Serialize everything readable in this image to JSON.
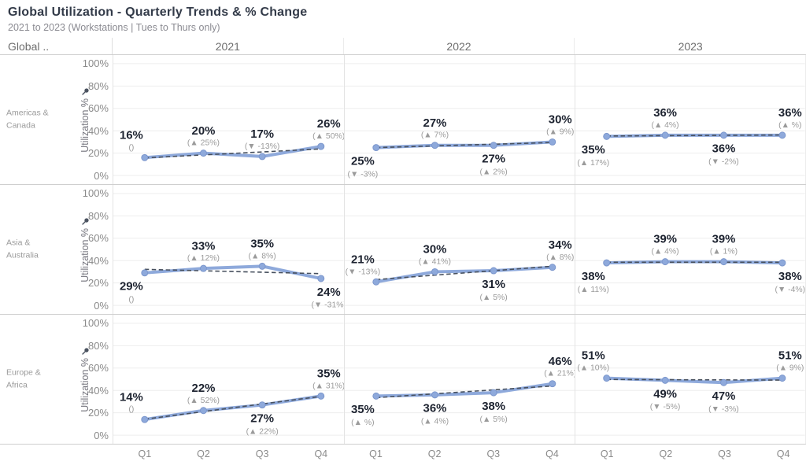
{
  "header": {
    "title": "Global Utilization - Quarterly Trends & % Change",
    "subtitle": "2021 to 2023 (Workstations | Tues to Thurs only)"
  },
  "colors": {
    "line": "#8ea9db",
    "marker": "#8ea9db",
    "marker_edge": "#7b96cc",
    "trend": "#47505e",
    "value_label": "#1d2330",
    "change_label": "#9b9b9b",
    "grid": "#ededed",
    "title": "#333b49"
  },
  "chart_data": {
    "type": "line",
    "title": "Global Utilization - Quarterly Trends & % Change",
    "subtitle": "2021 to 2023 (Workstations | Tues to Thurs only)",
    "corner_label": "Global ..",
    "columns": [
      "2021",
      "2022",
      "2023"
    ],
    "categories": [
      "Q1",
      "Q2",
      "Q3",
      "Q4"
    ],
    "ylabel": "Utilization %",
    "yticks": [
      "100%",
      "80%",
      "60%",
      "40%",
      "20%",
      "0%"
    ],
    "ylim": [
      0,
      100
    ],
    "grid": true,
    "legend": "none",
    "trendline": "linear dashed per panel",
    "rows": [
      {
        "label": "Americas & Canada",
        "panels": [
          {
            "year": "2021",
            "values": [
              16,
              20,
              17,
              26
            ],
            "value_labels": [
              "16%",
              "20%",
              "17%",
              "26%"
            ],
            "change_labels": [
              "()",
              "(▲ 25%)",
              "(▼ -13%)",
              "(▲ 50%)"
            ],
            "label_side": [
              "above",
              "above",
              "above",
              "above"
            ]
          },
          {
            "year": "2022",
            "values": [
              25,
              27,
              27,
              30
            ],
            "value_labels": [
              "25%",
              "27%",
              "27%",
              "30%"
            ],
            "change_labels": [
              "(▼ -3%)",
              "(▲ 7%)",
              "(▲ 2%)",
              "(▲ 9%)"
            ],
            "label_side": [
              "below",
              "above",
              "below",
              "above"
            ]
          },
          {
            "year": "2023",
            "values": [
              35,
              36,
              36,
              36
            ],
            "value_labels": [
              "35%",
              "36%",
              "36%",
              "36%"
            ],
            "change_labels": [
              "(▲ 17%)",
              "(▲ 4%)",
              "(▼ -2%)",
              "(▲ %)"
            ],
            "label_side": [
              "below",
              "above",
              "below",
              "above"
            ]
          }
        ]
      },
      {
        "label": "Asia & Australia",
        "panels": [
          {
            "year": "2021",
            "values": [
              29,
              33,
              35,
              24
            ],
            "value_labels": [
              "29%",
              "33%",
              "35%",
              "24%"
            ],
            "change_labels": [
              "()",
              "(▲ 12%)",
              "(▲ 8%)",
              "(▼ -31%)"
            ],
            "label_side": [
              "below",
              "above",
              "above",
              "below"
            ]
          },
          {
            "year": "2022",
            "values": [
              21,
              30,
              31,
              34
            ],
            "value_labels": [
              "21%",
              "30%",
              "31%",
              "34%"
            ],
            "change_labels": [
              "(▼ -13%)",
              "(▲ 41%)",
              "(▲ 5%)",
              "(▲ 8%)"
            ],
            "label_side": [
              "above",
              "above",
              "below",
              "above"
            ]
          },
          {
            "year": "2023",
            "values": [
              38,
              39,
              39,
              38
            ],
            "value_labels": [
              "38%",
              "39%",
              "39%",
              "38%"
            ],
            "change_labels": [
              "(▲ 11%)",
              "(▲ 4%)",
              "(▲ 1%)",
              "(▼ -4%)"
            ],
            "label_side": [
              "below",
              "above",
              "above",
              "below"
            ]
          }
        ]
      },
      {
        "label": "Europe & Africa",
        "panels": [
          {
            "year": "2021",
            "values": [
              14,
              22,
              27,
              35
            ],
            "value_labels": [
              "14%",
              "22%",
              "27%",
              "35%"
            ],
            "change_labels": [
              "()",
              "(▲ 52%)",
              "(▲ 22%)",
              "(▲ 31%)"
            ],
            "label_side": [
              "above",
              "above",
              "below",
              "above"
            ]
          },
          {
            "year": "2022",
            "values": [
              35,
              36,
              38,
              46
            ],
            "value_labels": [
              "35%",
              "36%",
              "38%",
              "46%"
            ],
            "change_labels": [
              "(▲ %)",
              "(▲ 4%)",
              "(▲ 5%)",
              "(▲ 21%)"
            ],
            "label_side": [
              "below",
              "below",
              "below",
              "above"
            ]
          },
          {
            "year": "2023",
            "values": [
              51,
              49,
              47,
              51
            ],
            "value_labels": [
              "51%",
              "49%",
              "47%",
              "51%"
            ],
            "change_labels": [
              "(▲ 10%)",
              "(▼ -5%)",
              "(▼ -3%)",
              "(▲ 9%)"
            ],
            "label_side": [
              "above",
              "below",
              "below",
              "above"
            ]
          }
        ]
      }
    ]
  }
}
